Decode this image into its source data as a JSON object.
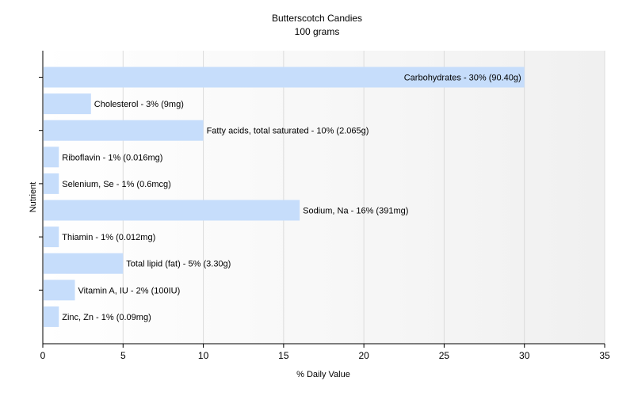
{
  "chart_data": {
    "type": "bar",
    "orientation": "horizontal",
    "title": "Butterscotch Candies",
    "subtitle": "100 grams",
    "xlabel": "% Daily Value",
    "ylabel": "Nutrient",
    "xlim": [
      0,
      35
    ],
    "xticks": [
      0,
      5,
      10,
      15,
      20,
      25,
      30,
      35
    ],
    "grid": true,
    "bar_color": "#c6ddfb",
    "categories": [
      "Carbohydrates",
      "Cholesterol",
      "Fatty acids, total saturated",
      "Riboflavin",
      "Selenium, Se",
      "Sodium, Na",
      "Thiamin",
      "Total lipid (fat)",
      "Vitamin A, IU",
      "Zinc, Zn"
    ],
    "values": [
      30,
      3,
      10,
      1,
      1,
      16,
      1,
      5,
      2,
      1
    ],
    "labels": [
      "Carbohydrates - 30% (90.40g)",
      "Cholesterol - 3% (9mg)",
      "Fatty acids, total saturated - 10% (2.065g)",
      "Riboflavin - 1% (0.016mg)",
      "Selenium, Se - 1% (0.6mcg)",
      "Sodium, Na - 16% (391mg)",
      "Thiamin - 1% (0.012mg)",
      "Total lipid (fat) - 5% (3.30g)",
      "Vitamin A, IU - 2% (100IU)",
      "Zinc, Zn - 1% (0.09mg)"
    ]
  }
}
